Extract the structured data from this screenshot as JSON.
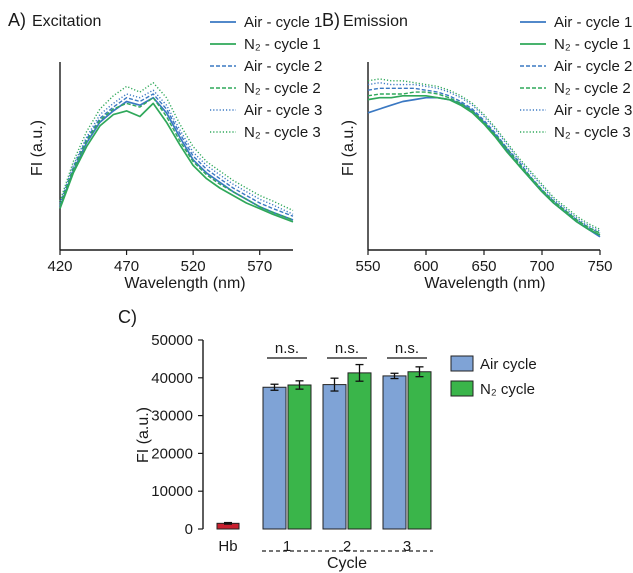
{
  "panels": {
    "A": {
      "label": "A)",
      "title": "Excitation",
      "xlabel": "Wavelength (nm)",
      "ylabel": "FI (a.u.)",
      "xticks": [
        420,
        470,
        520,
        570
      ]
    },
    "B": {
      "label": "B)",
      "title": "Emission",
      "xlabel": "Wavelength (nm)",
      "ylabel": "FI (a.u.)",
      "xticks": [
        550,
        600,
        650,
        700,
        750
      ]
    },
    "C": {
      "label": "C)",
      "xlabel": "Cycle",
      "ylabel": "FI (a.u.)",
      "yticks": [
        0,
        10000,
        20000,
        30000,
        40000,
        50000
      ],
      "significance": [
        "n.s.",
        "n.s.",
        "n.s."
      ]
    }
  },
  "legend_lines": [
    "Air - cycle 1",
    "N₂ - cycle 1",
    "Air - cycle 2",
    "N₂ - cycle 2",
    "Air - cycle 3",
    "N₂ - cycle 3"
  ],
  "legend_bars": [
    "Air cycle",
    "N₂ cycle"
  ],
  "colors": {
    "air_line": "#3a78c2",
    "n2_line": "#2fa85a",
    "air_bar": "#7fa3d6",
    "n2_bar": "#3ab54a",
    "hb_bar": "#c8202f",
    "axis": "#1a1a1a"
  },
  "chart_data": [
    {
      "type": "line",
      "title": "Excitation",
      "xlabel": "Wavelength (nm)",
      "ylabel": "FI (a.u.)",
      "xlim": [
        420,
        595
      ],
      "ylim": [
        0,
        1
      ],
      "x": [
        420,
        430,
        440,
        450,
        460,
        470,
        480,
        490,
        500,
        510,
        520,
        530,
        540,
        550,
        560,
        570,
        580,
        595
      ],
      "series": [
        {
          "name": "Air - cycle 1",
          "style": "solid",
          "values": [
            0.23,
            0.42,
            0.57,
            0.68,
            0.74,
            0.79,
            0.77,
            0.81,
            0.73,
            0.6,
            0.48,
            0.41,
            0.36,
            0.31,
            0.27,
            0.23,
            0.2,
            0.16
          ]
        },
        {
          "name": "N₂ - cycle 1",
          "style": "solid",
          "values": [
            0.22,
            0.41,
            0.55,
            0.66,
            0.72,
            0.74,
            0.71,
            0.78,
            0.68,
            0.56,
            0.45,
            0.38,
            0.33,
            0.29,
            0.25,
            0.22,
            0.19,
            0.15
          ]
        },
        {
          "name": "Air - cycle 2",
          "style": "dashed",
          "values": [
            0.24,
            0.44,
            0.59,
            0.7,
            0.76,
            0.81,
            0.79,
            0.83,
            0.75,
            0.62,
            0.5,
            0.43,
            0.38,
            0.33,
            0.29,
            0.25,
            0.22,
            0.18
          ]
        },
        {
          "name": "N₂ - cycle 2",
          "style": "dashed",
          "values": [
            0.24,
            0.43,
            0.58,
            0.69,
            0.75,
            0.78,
            0.76,
            0.81,
            0.71,
            0.58,
            0.47,
            0.4,
            0.35,
            0.31,
            0.27,
            0.23,
            0.2,
            0.16
          ]
        },
        {
          "name": "Air - cycle 3",
          "style": "dotted",
          "values": [
            0.25,
            0.45,
            0.6,
            0.72,
            0.78,
            0.83,
            0.81,
            0.85,
            0.77,
            0.64,
            0.52,
            0.45,
            0.4,
            0.35,
            0.31,
            0.27,
            0.24,
            0.19
          ]
        },
        {
          "name": "N₂ - cycle 3",
          "style": "dotted",
          "values": [
            0.26,
            0.47,
            0.63,
            0.75,
            0.82,
            0.87,
            0.84,
            0.89,
            0.81,
            0.67,
            0.55,
            0.47,
            0.42,
            0.37,
            0.33,
            0.29,
            0.26,
            0.21
          ]
        }
      ]
    },
    {
      "type": "line",
      "title": "Emission",
      "xlabel": "Wavelength (nm)",
      "ylabel": "FI (a.u.)",
      "xlim": [
        550,
        750
      ],
      "ylim": [
        0,
        1
      ],
      "x": [
        550,
        560,
        570,
        580,
        590,
        600,
        610,
        620,
        630,
        640,
        650,
        660,
        670,
        680,
        690,
        700,
        710,
        720,
        730,
        740,
        750
      ],
      "series": [
        {
          "name": "Air - cycle 1",
          "style": "solid",
          "values": [
            0.73,
            0.75,
            0.77,
            0.79,
            0.8,
            0.81,
            0.81,
            0.8,
            0.78,
            0.74,
            0.68,
            0.61,
            0.53,
            0.45,
            0.38,
            0.31,
            0.25,
            0.2,
            0.15,
            0.11,
            0.07
          ]
        },
        {
          "name": "N₂ - cycle 1",
          "style": "solid",
          "values": [
            0.8,
            0.81,
            0.81,
            0.82,
            0.82,
            0.82,
            0.81,
            0.8,
            0.77,
            0.73,
            0.67,
            0.6,
            0.52,
            0.45,
            0.38,
            0.31,
            0.25,
            0.2,
            0.15,
            0.11,
            0.08
          ]
        },
        {
          "name": "Air - cycle 2",
          "style": "dashed",
          "values": [
            0.85,
            0.86,
            0.86,
            0.86,
            0.86,
            0.85,
            0.84,
            0.82,
            0.79,
            0.75,
            0.69,
            0.62,
            0.54,
            0.47,
            0.39,
            0.32,
            0.26,
            0.21,
            0.16,
            0.12,
            0.09
          ]
        },
        {
          "name": "N₂ - cycle 2",
          "style": "dashed",
          "values": [
            0.82,
            0.83,
            0.83,
            0.83,
            0.84,
            0.84,
            0.83,
            0.81,
            0.78,
            0.74,
            0.68,
            0.61,
            0.54,
            0.46,
            0.39,
            0.32,
            0.26,
            0.21,
            0.16,
            0.12,
            0.09
          ]
        },
        {
          "name": "Air - cycle 3",
          "style": "dotted",
          "values": [
            0.88,
            0.89,
            0.88,
            0.88,
            0.88,
            0.87,
            0.86,
            0.84,
            0.81,
            0.77,
            0.71,
            0.64,
            0.56,
            0.48,
            0.41,
            0.34,
            0.27,
            0.22,
            0.17,
            0.13,
            0.1
          ]
        },
        {
          "name": "N₂ - cycle 3",
          "style": "dotted",
          "values": [
            0.9,
            0.91,
            0.9,
            0.9,
            0.89,
            0.88,
            0.87,
            0.85,
            0.82,
            0.78,
            0.72,
            0.65,
            0.57,
            0.49,
            0.42,
            0.35,
            0.28,
            0.23,
            0.18,
            0.14,
            0.11
          ]
        }
      ]
    },
    {
      "type": "bar",
      "xlabel": "Cycle",
      "ylabel": "FI (a.u.)",
      "ylim": [
        0,
        50000
      ],
      "categories": [
        "Hb",
        "1",
        "2",
        "3"
      ],
      "hb": {
        "value": 1500,
        "error": 200
      },
      "series": [
        {
          "name": "Air cycle",
          "values": [
            null,
            37500,
            38200,
            40500
          ],
          "errors": [
            null,
            800,
            1700,
            700
          ]
        },
        {
          "name": "N₂ cycle",
          "values": [
            null,
            38100,
            41300,
            41600
          ],
          "errors": [
            null,
            1100,
            2200,
            1300
          ]
        }
      ],
      "annotations": [
        "n.s.",
        "n.s.",
        "n.s."
      ],
      "legend": "top-right"
    }
  ]
}
